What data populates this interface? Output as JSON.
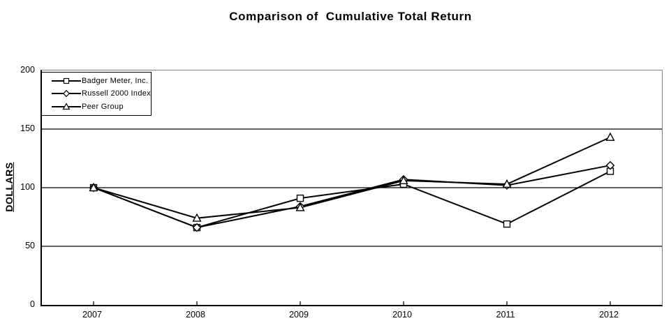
{
  "title": "Comparison of  Cumulative Total Return",
  "chart_data": {
    "type": "line",
    "title": "Comparison of  Cumulative Total Return",
    "xlabel": "",
    "ylabel": "DOLLARS",
    "categories": [
      "2007",
      "2008",
      "2009",
      "2010",
      "2011",
      "2012"
    ],
    "series": [
      {
        "name": "Badger Meter, Inc.",
        "marker": "square",
        "values": [
          100,
          66,
          91,
          103,
          69,
          114
        ]
      },
      {
        "name": "Russell 2000 Index",
        "marker": "diamond",
        "values": [
          100,
          66,
          84,
          107,
          102,
          119
        ]
      },
      {
        "name": "Peer Group",
        "marker": "triangle",
        "values": [
          100,
          74,
          83,
          106,
          103,
          143
        ]
      }
    ],
    "ylim": [
      0,
      200
    ],
    "y_ticks": [
      0,
      50,
      100,
      150,
      200
    ],
    "grid": "horizontal-major",
    "legend_position": "top-left-inside",
    "line_color": "#000000",
    "marker_fill": "#ffffff",
    "frame_color": "#808080",
    "axis_color": "#000000"
  }
}
